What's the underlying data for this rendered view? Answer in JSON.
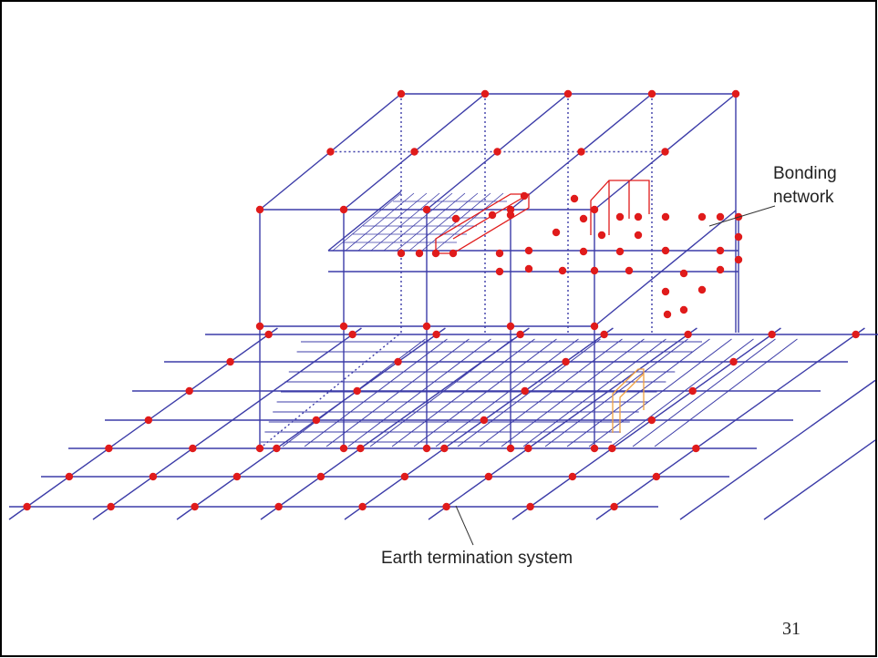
{
  "labels": {
    "bonding": [
      "Bonding",
      "network"
    ],
    "earth": "Earth termination system"
  },
  "page_number": "31"
}
